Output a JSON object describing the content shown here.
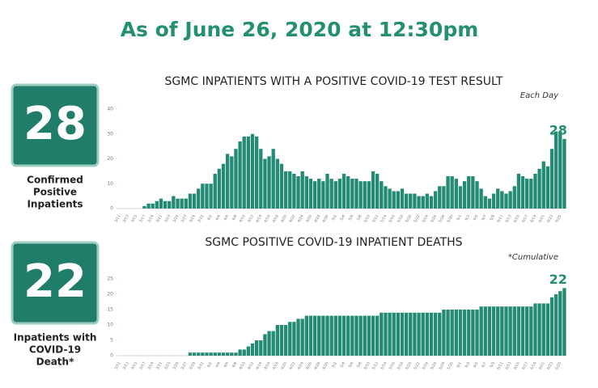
{
  "header": {
    "title": "As of June 26, 2020 at 12:30pm"
  },
  "panels": [
    {
      "value": 28,
      "label": [
        "Confirmed",
        "Positive",
        "Inpatients"
      ]
    },
    {
      "value": 22,
      "label": [
        "Inpatients with",
        "COVID-19",
        "Death*"
      ]
    }
  ],
  "chart_data": [
    {
      "type": "bar",
      "title": "SGMC INPATIENTS WITH A POSITIVE COVID-19 TEST RESULT",
      "annotation": "Each Day",
      "color": "#238a74",
      "categories": [
        "3/11",
        null,
        "3/13",
        null,
        "3/15",
        null,
        "3/17",
        null,
        "3/19",
        null,
        "3/21",
        null,
        "3/23",
        null,
        "3/25",
        null,
        "3/27",
        null,
        "3/29",
        null,
        "3/31",
        null,
        "4/2",
        null,
        "4/4",
        null,
        "4/6",
        null,
        "4/8",
        null,
        "4/10",
        null,
        "4/12",
        null,
        "4/14",
        null,
        "4/16",
        null,
        "4/18",
        null,
        "4/20",
        null,
        "4/22",
        null,
        "4/24",
        null,
        "4/26",
        null,
        "4/28",
        null,
        "4/30",
        null,
        "5/2",
        null,
        "5/4",
        null,
        "5/6",
        null,
        "5/8",
        null,
        "5/10",
        null,
        "5/12",
        null,
        "5/14",
        null,
        "5/16",
        null,
        "5/18",
        null,
        "5/20",
        null,
        "5/22",
        null,
        "5/24",
        null,
        "5/26",
        null,
        "5/28",
        null,
        "5/30",
        null,
        "6/1",
        null,
        "6/3",
        null,
        "6/5",
        null,
        "6/7",
        null,
        "6/9",
        null,
        "6/11",
        null,
        "6/13",
        null,
        "6/15",
        null,
        "6/17",
        null,
        "6/19",
        null,
        "6/21",
        null,
        "6/23",
        null,
        "6/25",
        null
      ],
      "values": [
        0,
        0,
        0,
        0,
        0,
        0,
        1,
        2,
        2,
        3,
        4,
        3,
        3,
        5,
        4,
        4,
        4,
        6,
        6,
        8,
        10,
        10,
        10,
        14,
        16,
        18,
        22,
        21,
        24,
        27,
        29,
        29,
        30,
        29,
        24,
        20,
        21,
        24,
        20,
        18,
        15,
        15,
        14,
        13,
        15,
        13,
        12,
        11,
        12,
        11,
        14,
        12,
        11,
        12,
        14,
        13,
        12,
        12,
        11,
        11,
        11,
        15,
        14,
        11,
        9,
        8,
        7,
        7,
        8,
        6,
        6,
        6,
        5,
        5,
        6,
        5,
        7,
        9,
        9,
        13,
        13,
        12,
        9,
        11,
        13,
        13,
        11,
        8,
        5,
        4,
        6,
        8,
        7,
        6,
        7,
        9,
        14,
        13,
        12,
        12,
        14,
        16,
        19,
        17,
        24,
        31,
        31,
        28
      ],
      "ylim": [
        0,
        40
      ],
      "yticks": [
        0,
        10,
        20,
        30,
        40
      ]
    },
    {
      "type": "bar",
      "title": "SGMC POSITIVE COVID-19 INPATIENT DEATHS",
      "annotation": "*Cumulative",
      "color": "#238a74",
      "categories": [
        "3/11",
        null,
        "3/13",
        null,
        "3/15",
        null,
        "3/17",
        null,
        "3/19",
        null,
        "3/21",
        null,
        "3/23",
        null,
        "3/25",
        null,
        "3/27",
        null,
        "3/29",
        null,
        "3/31",
        null,
        "4/2",
        null,
        "4/4",
        null,
        "4/6",
        null,
        "4/8",
        null,
        "4/10",
        null,
        "4/12",
        null,
        "4/14",
        null,
        "4/16",
        null,
        "4/18",
        null,
        "4/20",
        null,
        "4/22",
        null,
        "4/24",
        null,
        "4/26",
        null,
        "4/28",
        null,
        "4/30",
        null,
        "5/2",
        null,
        "5/4",
        null,
        "5/6",
        null,
        "5/8",
        null,
        "5/10",
        null,
        "5/12",
        null,
        "5/14",
        null,
        "5/16",
        null,
        "5/18",
        null,
        "5/20",
        null,
        "5/22",
        null,
        "5/24",
        null,
        "5/26",
        null,
        "5/28",
        null,
        "5/30",
        null,
        "6/1",
        null,
        "6/3",
        null,
        "6/5",
        null,
        "6/7",
        null,
        "6/9",
        null,
        "6/11",
        null,
        "6/13",
        null,
        "6/15",
        null,
        "6/17",
        null,
        "6/19",
        null,
        "6/21",
        null,
        "6/23",
        null,
        "6/25",
        null
      ],
      "values": [
        0,
        0,
        0,
        0,
        0,
        0,
        0,
        0,
        0,
        0,
        0,
        0,
        0,
        0,
        0,
        0,
        0,
        1,
        1,
        1,
        1,
        1,
        1,
        1,
        1,
        1,
        1,
        1,
        1,
        2,
        2,
        3,
        4,
        5,
        5,
        7,
        8,
        8,
        10,
        10,
        10,
        11,
        11,
        12,
        12,
        13,
        13,
        13,
        13,
        13,
        13,
        13,
        13,
        13,
        13,
        13,
        13,
        13,
        13,
        13,
        13,
        13,
        13,
        14,
        14,
        14,
        14,
        14,
        14,
        14,
        14,
        14,
        14,
        14,
        14,
        14,
        14,
        14,
        15,
        15,
        15,
        15,
        15,
        15,
        15,
        15,
        15,
        16,
        16,
        16,
        16,
        16,
        16,
        16,
        16,
        16,
        16,
        16,
        16,
        16,
        17,
        17,
        17,
        17,
        19,
        20,
        21,
        22
      ],
      "ylim": [
        0,
        25
      ],
      "yticks": [
        0,
        5,
        10,
        15,
        20,
        25
      ]
    }
  ]
}
